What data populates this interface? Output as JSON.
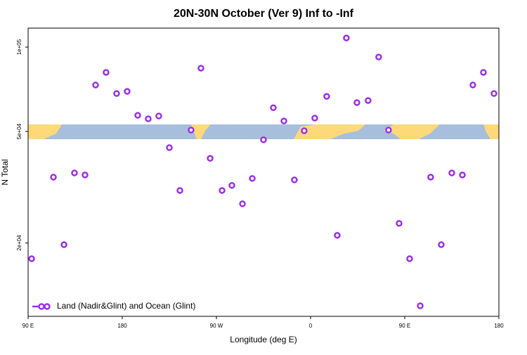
{
  "chart_data": {
    "type": "scatter",
    "title": "20N-30N October (Ver 9)   Inf to -Inf",
    "xlabel": "Longitude (deg E)",
    "ylabel": "N Total",
    "xlim": [
      90,
      540
    ],
    "xticks": [
      {
        "value": 90,
        "label": "90 E"
      },
      180,
      {
        "value": 270,
        "label": "90 W"
      },
      {
        "value": 360,
        "label": "0"
      },
      {
        "value": 450,
        "label": "90 E"
      },
      {
        "value": 540,
        "label": "180"
      }
    ],
    "ylim": [
      10950,
      116900
    ],
    "ylog": true,
    "yticks": [
      {
        "value": 100000,
        "label": "1e+05"
      },
      {
        "value": 50000,
        "label": "5e+04"
      },
      {
        "value": 20000,
        "label": "2e+04"
      }
    ],
    "legend": "lower left",
    "series": [
      {
        "name": "Land (Nadir&Glint) and Ocean (Glint)",
        "color": "#9b30e8",
        "x": [
          93.4,
          114.2,
          124.3,
          134.3,
          144.4,
          154.5,
          164.5,
          174.6,
          184.7,
          194.8,
          204.8,
          214.9,
          225.0,
          235.1,
          245.8,
          255.2,
          264.0,
          275.4,
          284.8,
          294.9,
          304.3,
          315.0,
          324.4,
          334.5,
          344.5,
          353.9,
          364.0,
          375.4,
          385.5,
          394.2,
          404.3,
          415.0,
          425.1,
          434.5,
          444.6,
          454.7,
          464.8,
          474.8,
          484.9,
          495.0,
          505.1,
          515.1,
          525.2,
          535.3
        ],
        "values": [
          17580,
          34360,
          19730,
          35560,
          34980,
          73250,
          81260,
          68300,
          69500,
          57100,
          55500,
          56800,
          43800,
          30800,
          50600,
          84100,
          40100,
          30800,
          32100,
          27600,
          34000,
          46700,
          60800,
          54500,
          33600,
          50300,
          55800,
          66700,
          21300,
          107800,
          63400,
          64500,
          92200,
          50600,
          23500,
          17580,
          11940,
          34360,
          19730,
          35560,
          34980,
          73250,
          81260,
          68300
        ]
      }
    ]
  }
}
